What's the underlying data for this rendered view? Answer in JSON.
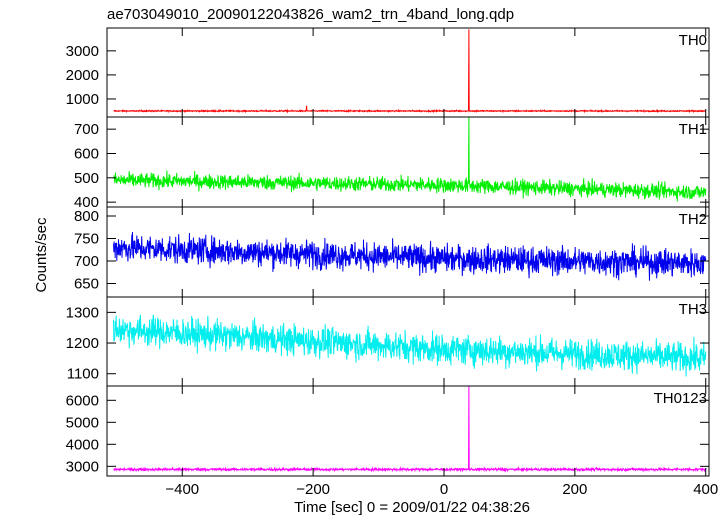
{
  "title": "ae703049010_20090122043826_wam2_trn_4band_long.qdp",
  "xlabel": "Time [sec] 0 = 2009/01/22 04:38:26",
  "ylabel": "Counts/sec",
  "chart_data": [
    {
      "type": "line",
      "name": "TH0",
      "color": "#ff0000",
      "xlim": [
        -515,
        405
      ],
      "ylim": [
        250,
        3950
      ],
      "yticks": [
        1000,
        2000,
        3000
      ],
      "baseline": 500,
      "noise": 18,
      "spikes": [
        {
          "x": 38,
          "y": 3900
        },
        {
          "x": -210,
          "y": 720
        }
      ]
    },
    {
      "type": "line",
      "name": "TH1",
      "color": "#00ee00",
      "xlim": [
        -515,
        405
      ],
      "ylim": [
        380,
        750
      ],
      "yticks": [
        400,
        500,
        600,
        700
      ],
      "trend": [
        [
          -500,
          490
        ],
        [
          0,
          470
        ],
        [
          400,
          440
        ]
      ],
      "noise": 22,
      "spikes": [
        {
          "x": 38,
          "y": 750
        }
      ]
    },
    {
      "type": "line",
      "name": "TH2",
      "color": "#0000ee",
      "xlim": [
        -515,
        405
      ],
      "ylim": [
        620,
        820
      ],
      "yticks": [
        650,
        700,
        750,
        800
      ],
      "trend": [
        [
          -500,
          730
        ],
        [
          0,
          705
        ],
        [
          400,
          695
        ]
      ],
      "noise": 22
    },
    {
      "type": "line",
      "name": "TH3",
      "color": "#00eeee",
      "xlim": [
        -515,
        405
      ],
      "ylim": [
        1060,
        1350
      ],
      "yticks": [
        1100,
        1200,
        1300
      ],
      "trend": [
        [
          -500,
          1245
        ],
        [
          0,
          1180
        ],
        [
          400,
          1150
        ]
      ],
      "noise": 35
    },
    {
      "type": "line",
      "name": "TH0123",
      "color": "#ff00ff",
      "xlim": [
        -515,
        405
      ],
      "ylim": [
        2560,
        6650
      ],
      "yticks": [
        3000,
        4000,
        5000,
        6000
      ],
      "baseline": 2860,
      "noise": 40,
      "spikes": [
        {
          "x": 38,
          "y": 6650
        }
      ]
    }
  ],
  "x_axis": {
    "ticks": [
      -400,
      -200,
      0,
      200,
      400
    ],
    "tick_labels": [
      "−400",
      "−200",
      "0",
      "200",
      "400"
    ]
  }
}
